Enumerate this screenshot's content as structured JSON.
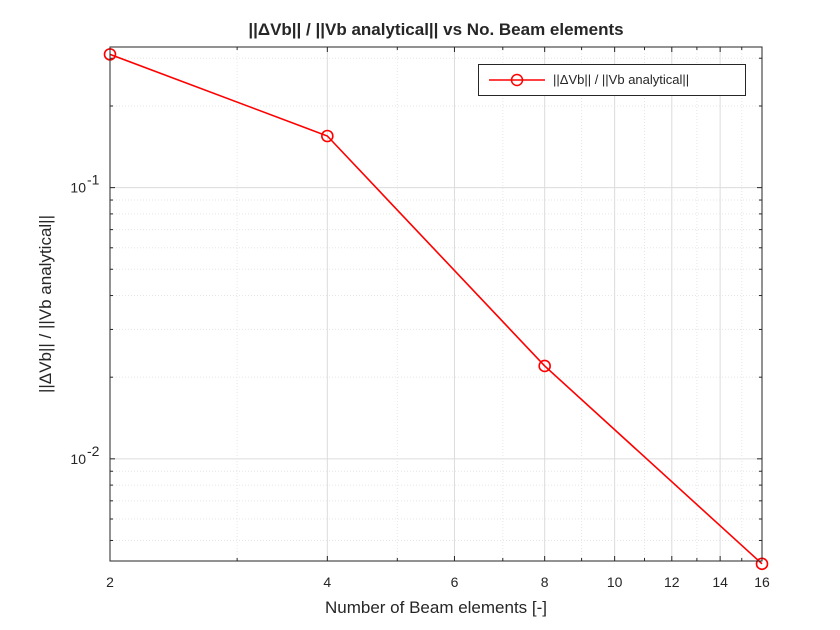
{
  "chart_data": {
    "type": "line",
    "title": "||ΔVb|| / ||Vb analytical|| vs No. Beam elements",
    "xlabel": "Number of Beam elements [-]",
    "ylabel": "||ΔVb|| / ||Vb analytical||",
    "x_scale": "log",
    "y_scale": "log",
    "xlim": [
      2,
      16
    ],
    "ylim": [
      0.0042,
      0.33
    ],
    "x_ticks": [
      2,
      4,
      6,
      8,
      10,
      12,
      14,
      16
    ],
    "x_tick_labels": [
      "2",
      "4",
      "6",
      "8",
      "10",
      "12",
      "14",
      "16"
    ],
    "y_ticks": [
      0.01,
      0.1
    ],
    "y_tick_labels": [
      {
        "base": "10",
        "exp": "-2"
      },
      {
        "base": "10",
        "exp": "-1"
      }
    ],
    "grid": true,
    "minor_grid": true,
    "legend_position": "top-right",
    "series": [
      {
        "name": "||ΔVb|| / ||Vb analytical||",
        "color": "#ff0000",
        "marker": "circle",
        "x": [
          2,
          4,
          8,
          16
        ],
        "y": [
          0.31,
          0.155,
          0.022,
          0.0041
        ]
      }
    ]
  }
}
